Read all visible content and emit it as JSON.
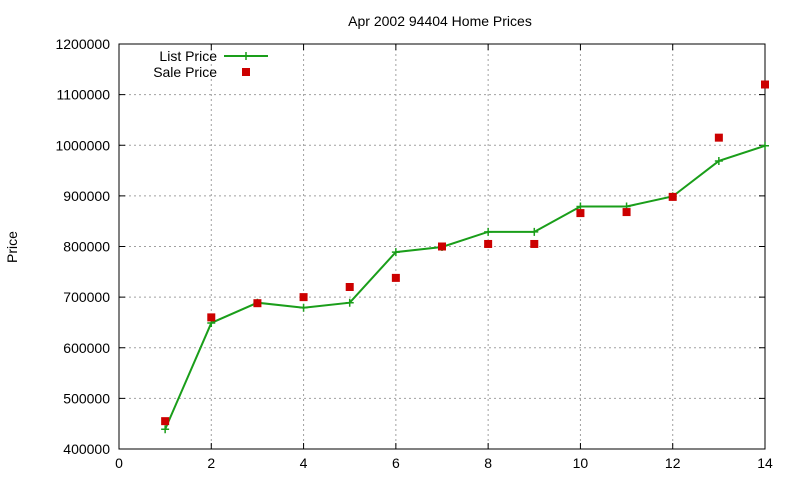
{
  "chart_data": {
    "type": "line",
    "title": "Apr 2002 94404 Home Prices",
    "xlabel": "",
    "ylabel": "Price",
    "xlim": [
      0,
      14
    ],
    "ylim": [
      400000,
      1200000
    ],
    "xticks": [
      0,
      2,
      4,
      6,
      8,
      10,
      12,
      14
    ],
    "xtick_labels": [
      "0",
      "2",
      "4",
      "6",
      "8",
      "10",
      "12",
      "14"
    ],
    "yticks": [
      400000,
      500000,
      600000,
      700000,
      800000,
      900000,
      1000000,
      1100000,
      1200000
    ],
    "ytick_labels": [
      "400000",
      "500000",
      "600000",
      "700000",
      "800000",
      "900000",
      "1000000",
      "1100000",
      "1200000"
    ],
    "grid": true,
    "legend_position": "top-left",
    "x": [
      1,
      2,
      3,
      4,
      5,
      6,
      7,
      8,
      9,
      10,
      11,
      12,
      13,
      14
    ],
    "series": [
      {
        "name": "List Price",
        "style": "linespoints",
        "marker": "plus",
        "color": "#1a9e1a",
        "values": [
          439000,
          649000,
          689000,
          679000,
          689000,
          789000,
          799000,
          829000,
          829000,
          879000,
          879000,
          899000,
          969000,
          999000
        ]
      },
      {
        "name": "Sale Price",
        "style": "points",
        "marker": "square",
        "color": "#cc0000",
        "values": [
          455000,
          660000,
          688000,
          700000,
          720000,
          738000,
          800000,
          805000,
          805000,
          866000,
          868000,
          898000,
          1015000,
          1120000
        ]
      }
    ]
  }
}
